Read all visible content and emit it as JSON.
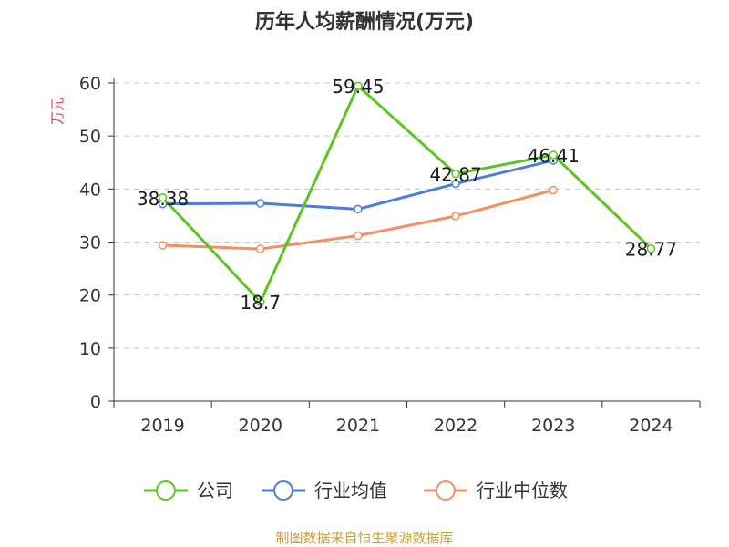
{
  "chart_data": {
    "type": "line",
    "title": "历年人均薪酬情况(万元)",
    "ylabel": "万元",
    "ylim": [
      0,
      60
    ],
    "yticks": [
      0,
      10,
      20,
      30,
      40,
      50,
      60
    ],
    "grid": true,
    "legend_position": "bottom",
    "categories": [
      "2019",
      "2020",
      "2021",
      "2022",
      "2023",
      "2024"
    ],
    "series": [
      {
        "name": "公司",
        "color": "#5cc423",
        "values": [
          38.38,
          18.7,
          59.45,
          42.87,
          46.41,
          28.77
        ],
        "labels": [
          "38.38",
          "18.7",
          "59.45",
          "42.87",
          "46.41",
          "28.77"
        ]
      },
      {
        "name": "行业均值",
        "color": "#4a7fd4",
        "values": [
          37.2,
          37.3,
          36.2,
          41.0,
          45.4,
          null
        ]
      },
      {
        "name": "行业中位数",
        "color": "#f39061",
        "values": [
          29.4,
          28.7,
          31.2,
          34.9,
          39.8,
          null
        ]
      }
    ]
  },
  "source": "制图数据来自恒生聚源数据库"
}
